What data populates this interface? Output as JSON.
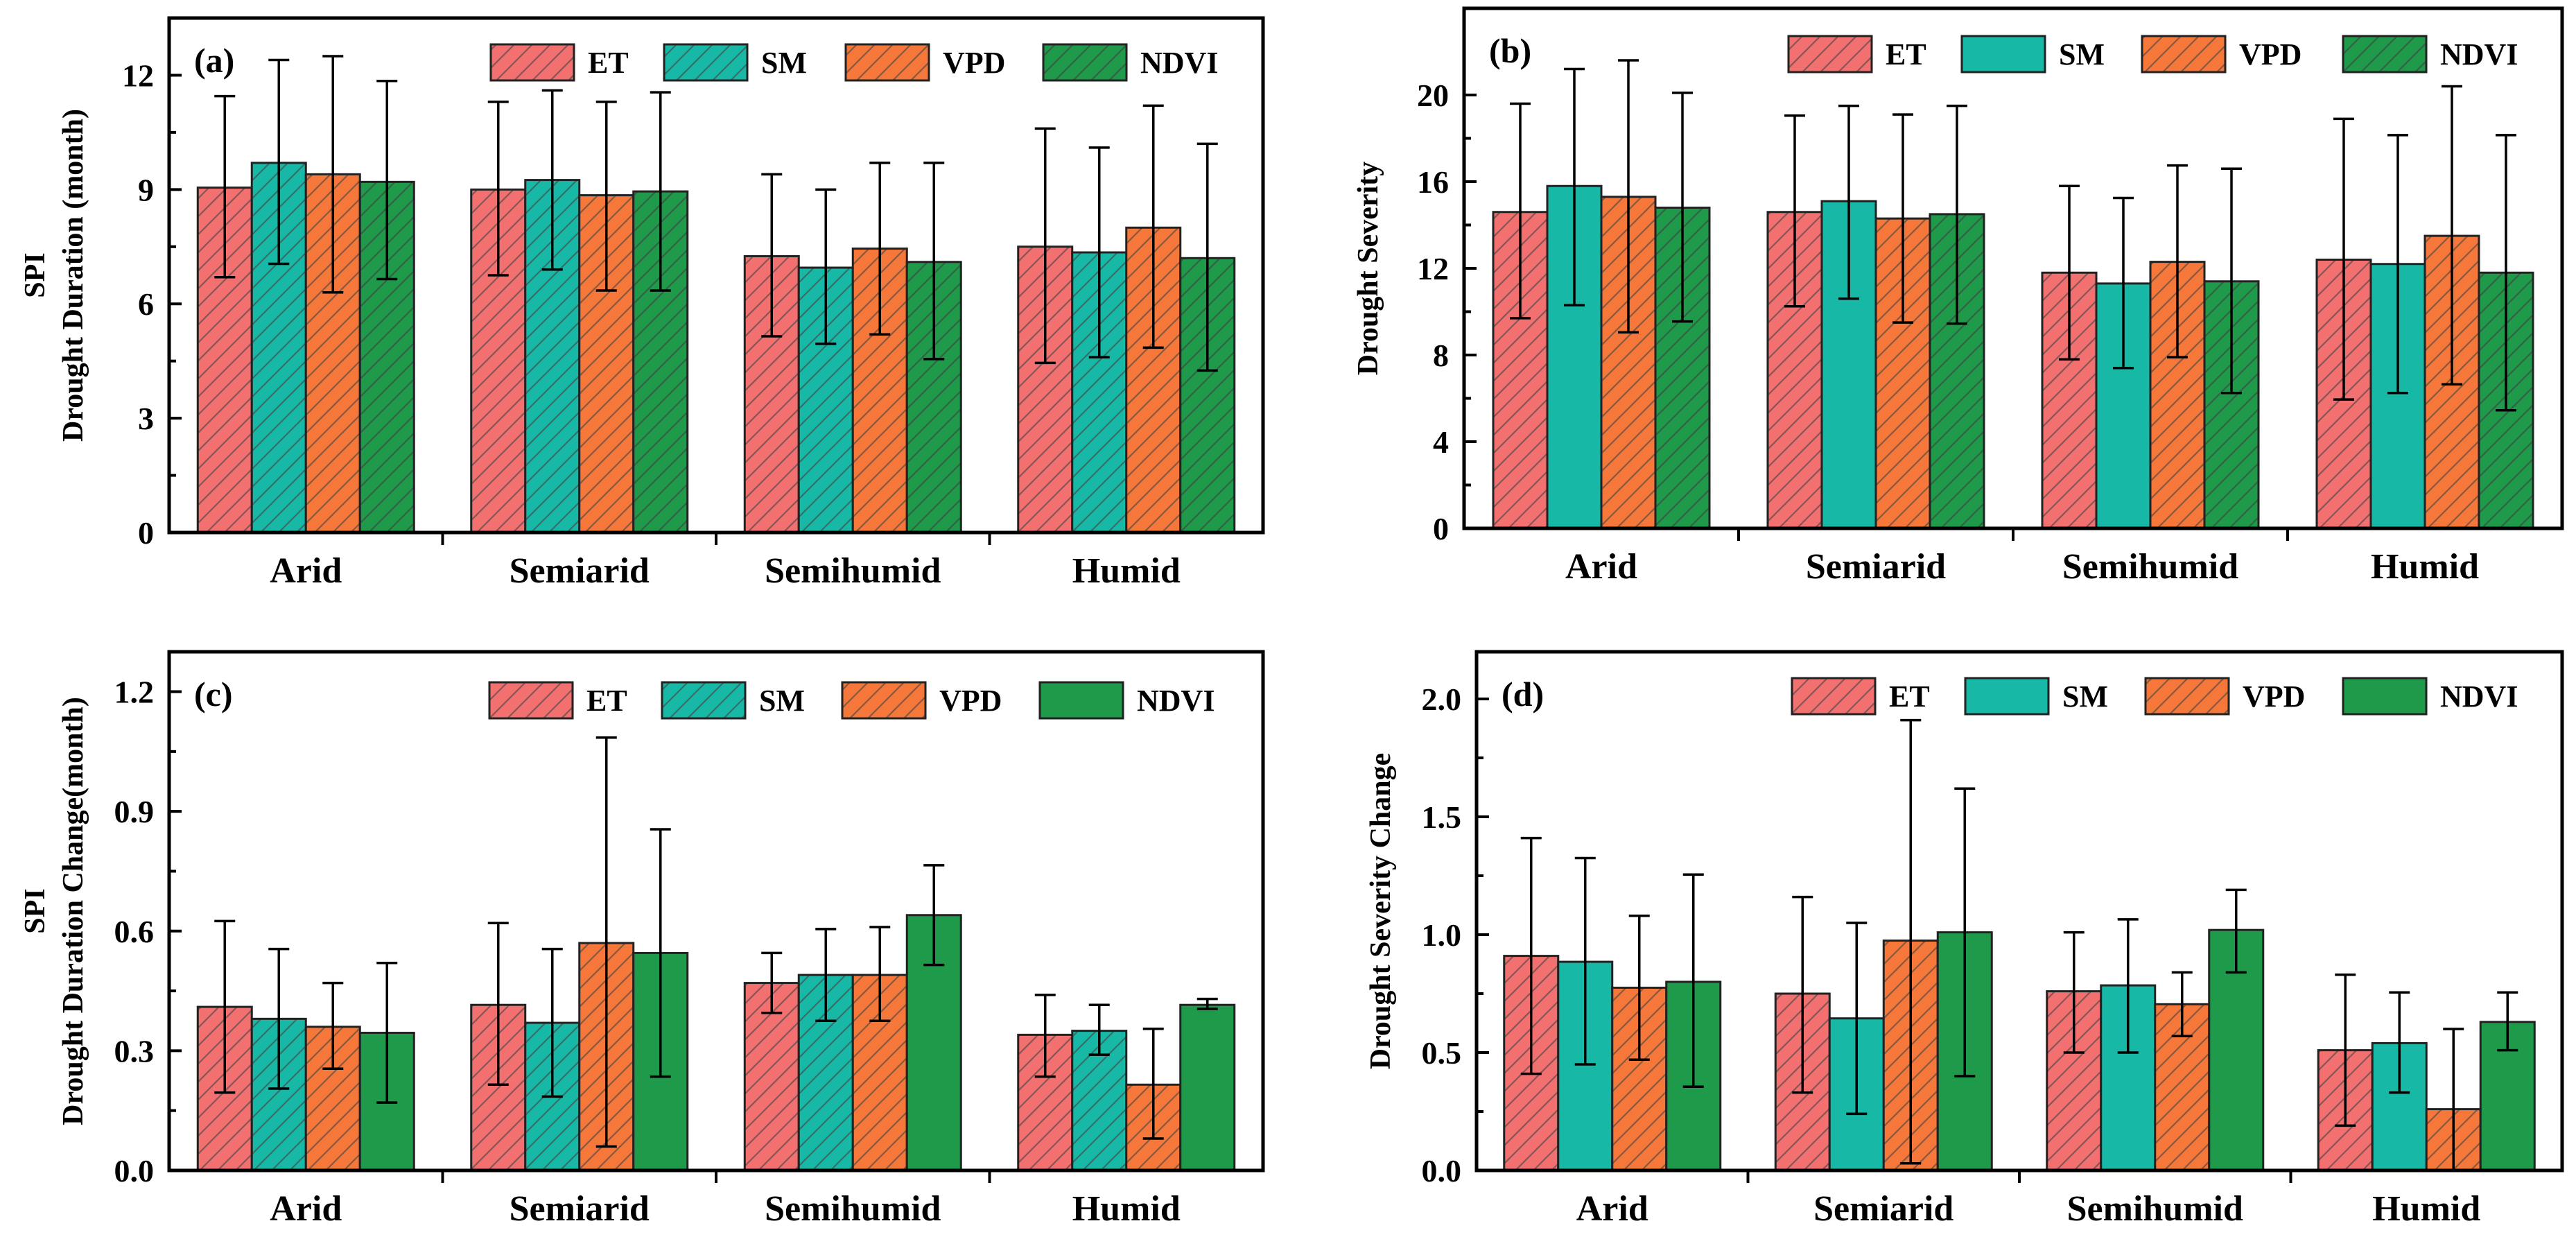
{
  "colors": {
    "ET": "#f2706f",
    "SM": "#18b8a6",
    "VPD": "#f5773a",
    "NDVI": "#1e9a4a"
  },
  "chart_data": [
    {
      "type": "bar",
      "panel": "(a)",
      "ylabel_lines": [
        "SPI",
        "Drought Duration (month)"
      ],
      "categories": [
        "Arid",
        "Semiarid",
        "Semihumid",
        "Humid"
      ],
      "ylim": [
        0,
        13.5
      ],
      "yticks": [
        0,
        3,
        6,
        9,
        12
      ],
      "ytick_labels": [
        "0",
        "3",
        "6",
        "9",
        "12"
      ],
      "legend": [
        "ET",
        "SM",
        "VPD",
        "NDVI"
      ],
      "series": [
        {
          "name": "ET",
          "hatched": true,
          "values": [
            9.05,
            9.0,
            7.25,
            7.5
          ],
          "err_upper": [
            11.45,
            11.3,
            9.4,
            10.6
          ],
          "err_lower": [
            6.7,
            6.75,
            5.15,
            4.45
          ]
        },
        {
          "name": "SM",
          "hatched": true,
          "values": [
            9.7,
            9.25,
            6.95,
            7.35
          ],
          "err_upper": [
            12.4,
            11.6,
            9.0,
            10.1
          ],
          "err_lower": [
            7.05,
            6.9,
            4.95,
            4.6
          ]
        },
        {
          "name": "VPD",
          "hatched": true,
          "values": [
            9.4,
            8.85,
            7.45,
            8.0
          ],
          "err_upper": [
            12.5,
            11.3,
            9.7,
            11.2
          ],
          "err_lower": [
            6.3,
            6.35,
            5.2,
            4.85
          ]
        },
        {
          "name": "NDVI",
          "hatched": true,
          "values": [
            9.2,
            8.95,
            7.1,
            7.2
          ],
          "err_upper": [
            11.85,
            11.55,
            9.7,
            10.2
          ],
          "err_lower": [
            6.65,
            6.35,
            4.55,
            4.25
          ]
        }
      ]
    },
    {
      "type": "bar",
      "panel": "(b)",
      "ylabel_lines": [
        "Drought Severity"
      ],
      "categories": [
        "Arid",
        "Semiarid",
        "Semihumid",
        "Humid"
      ],
      "ylim": [
        0,
        24
      ],
      "yticks": [
        0,
        4,
        8,
        12,
        16,
        20
      ],
      "ytick_labels": [
        "0",
        "4",
        "8",
        "12",
        "16",
        "20"
      ],
      "legend": [
        "ET",
        "SM",
        "VPD",
        "NDVI"
      ],
      "series": [
        {
          "name": "ET",
          "hatched": true,
          "values": [
            14.6,
            14.6,
            11.8,
            12.4
          ],
          "err_upper": [
            19.6,
            19.05,
            15.8,
            18.9
          ],
          "err_lower": [
            9.7,
            10.25,
            7.8,
            5.95
          ]
        },
        {
          "name": "SM",
          "hatched": false,
          "values": [
            15.8,
            15.1,
            11.3,
            12.2
          ],
          "err_upper": [
            21.2,
            19.5,
            15.25,
            18.15
          ],
          "err_lower": [
            10.3,
            10.6,
            7.4,
            6.25
          ]
        },
        {
          "name": "VPD",
          "hatched": true,
          "values": [
            15.3,
            14.3,
            12.3,
            13.5
          ],
          "err_upper": [
            21.6,
            19.1,
            16.75,
            20.4
          ],
          "err_lower": [
            9.05,
            9.5,
            7.9,
            6.65
          ]
        },
        {
          "name": "NDVI",
          "hatched": true,
          "values": [
            14.8,
            14.5,
            11.4,
            11.8
          ],
          "err_upper": [
            20.1,
            19.5,
            16.6,
            18.15
          ],
          "err_lower": [
            9.55,
            9.45,
            6.25,
            5.45
          ]
        }
      ]
    },
    {
      "type": "bar",
      "panel": "(c)",
      "ylabel_lines": [
        "SPI",
        "Drought Duration Change(month)"
      ],
      "categories": [
        "Arid",
        "Semiarid",
        "Semihumid",
        "Humid"
      ],
      "ylim": [
        0,
        1.3
      ],
      "yticks": [
        0,
        0.3,
        0.6,
        0.9,
        1.2
      ],
      "ytick_labels": [
        "0.0",
        "0.3",
        "0.6",
        "0.9",
        "1.2"
      ],
      "legend": [
        "ET",
        "SM",
        "VPD",
        "NDVI"
      ],
      "series": [
        {
          "name": "ET",
          "hatched": true,
          "values": [
            0.41,
            0.415,
            0.47,
            0.34
          ],
          "err_upper": [
            0.625,
            0.62,
            0.545,
            0.44
          ],
          "err_lower": [
            0.195,
            0.215,
            0.395,
            0.235
          ]
        },
        {
          "name": "SM",
          "hatched": true,
          "values": [
            0.38,
            0.37,
            0.49,
            0.35
          ],
          "err_upper": [
            0.555,
            0.555,
            0.605,
            0.415
          ],
          "err_lower": [
            0.205,
            0.185,
            0.375,
            0.29
          ]
        },
        {
          "name": "VPD",
          "hatched": true,
          "values": [
            0.36,
            0.57,
            0.49,
            0.215
          ],
          "err_upper": [
            0.47,
            1.085,
            0.61,
            0.355
          ],
          "err_lower": [
            0.255,
            0.06,
            0.375,
            0.08
          ]
        },
        {
          "name": "NDVI",
          "hatched": false,
          "values": [
            0.345,
            0.545,
            0.64,
            0.415
          ],
          "err_upper": [
            0.52,
            0.855,
            0.765,
            0.43
          ],
          "err_lower": [
            0.17,
            0.235,
            0.515,
            0.405
          ]
        }
      ]
    },
    {
      "type": "bar",
      "panel": "(d)",
      "ylabel_lines": [
        "Drought Severity Change"
      ],
      "categories": [
        "Arid",
        "Semiarid",
        "Semihumid",
        "Humid"
      ],
      "ylim": [
        0,
        2.2
      ],
      "yticks": [
        0,
        0.5,
        1.0,
        1.5,
        2.0
      ],
      "ytick_labels": [
        "0.0",
        "0.5",
        "1.0",
        "1.5",
        "2.0"
      ],
      "legend": [
        "ET",
        "SM",
        "VPD",
        "NDVI"
      ],
      "series": [
        {
          "name": "ET",
          "hatched": true,
          "values": [
            0.91,
            0.75,
            0.76,
            0.51
          ],
          "err_upper": [
            1.41,
            1.16,
            1.01,
            0.83
          ],
          "err_lower": [
            0.41,
            0.33,
            0.5,
            0.19
          ]
        },
        {
          "name": "SM",
          "hatched": false,
          "values": [
            0.885,
            0.645,
            0.785,
            0.54
          ],
          "err_upper": [
            1.325,
            1.05,
            1.065,
            0.755
          ],
          "err_lower": [
            0.45,
            0.24,
            0.5,
            0.33
          ]
        },
        {
          "name": "VPD",
          "hatched": true,
          "values": [
            0.775,
            0.975,
            0.705,
            0.26
          ],
          "err_upper": [
            1.08,
            1.91,
            0.84,
            0.6
          ],
          "err_lower": [
            0.47,
            0.03,
            0.57,
            0.0
          ]
        },
        {
          "name": "NDVI",
          "hatched": false,
          "values": [
            0.8,
            1.01,
            1.02,
            0.63
          ],
          "err_upper": [
            1.255,
            1.62,
            1.19,
            0.755
          ],
          "err_lower": [
            0.355,
            0.4,
            0.84,
            0.51
          ]
        }
      ]
    }
  ]
}
